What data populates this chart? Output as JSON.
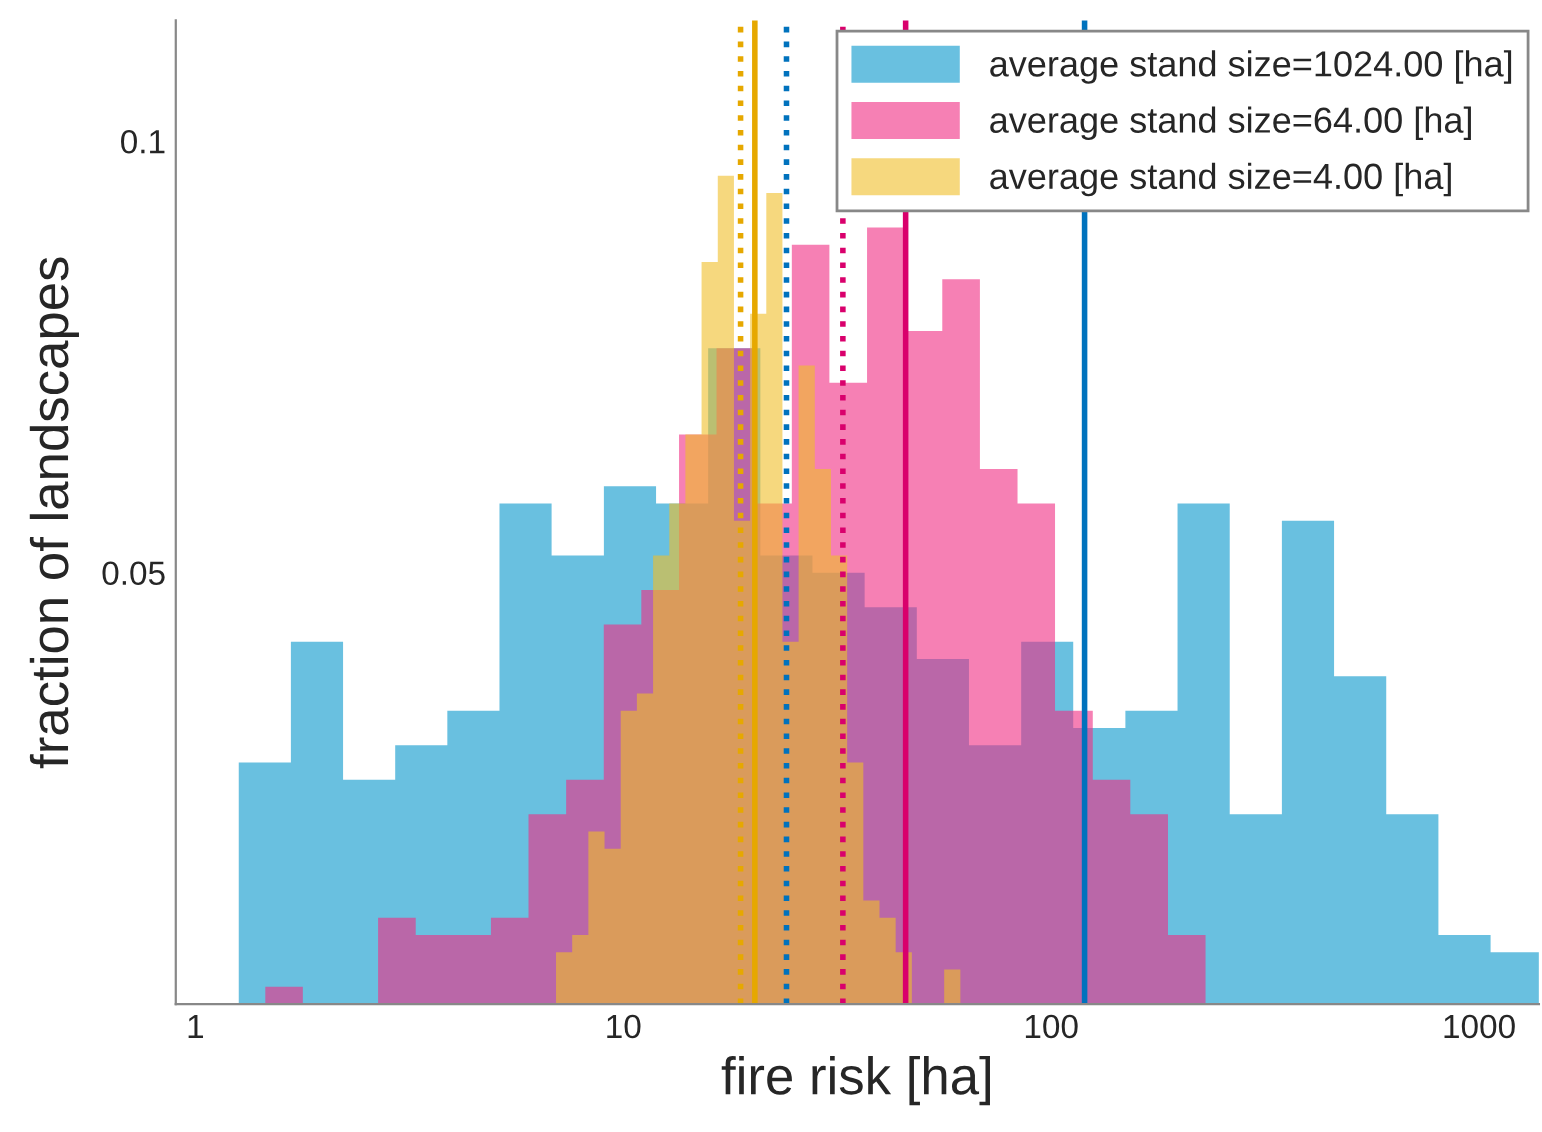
{
  "chart_data": {
    "type": "histogram",
    "xlabel": "fire risk [ha]",
    "ylabel": "fraction of landscapes",
    "log": "x",
    "xlim": [
      0.9,
      1380
    ],
    "xticks": [
      1,
      10,
      100,
      1000
    ],
    "ylim": [
      0,
      0.114
    ],
    "yticks": [
      0.05,
      0.1
    ],
    "grid": false,
    "legend": "top right",
    "bins": [
      1.263,
      1.672,
      2.214,
      2.931,
      3.88,
      5.137,
      6.8,
      9.01,
      11.93,
      15.79,
      20.91,
      27.68,
      36.65,
      48.53,
      64.25,
      85.1,
      112.6,
      149.1,
      197.4,
      261.4,
      346.1,
      458.3,
      606.8,
      803.5,
      1064,
      1380
    ],
    "series": [
      {
        "name": "average stand size=1024.00 [ha]",
        "color": "#69c0e0",
        "values": [
          0.028,
          0.042,
          0.026,
          0.03,
          0.034,
          0.058,
          0.052,
          0.06,
          0.058,
          0.076,
          0.052,
          0.05,
          0.046,
          0.04,
          0.03,
          0.042,
          0.032,
          0.034,
          0.058,
          0.022,
          0.056,
          0.038,
          0.022,
          0.008,
          0.006
        ]
      },
      {
        "name": "average stand size=64.00 [ha]",
        "type": "histogram",
        "color": "#f680b4",
        "bins": [
          1.457,
          1.783,
          2.183,
          2.673,
          3.273,
          4.007,
          4.906,
          6.006,
          7.354,
          9.004,
          11.02,
          13.5,
          16.52,
          20.23,
          24.77,
          30.32,
          37.13,
          45.46,
          55.66,
          68.15,
          83.44,
          102.1,
          125.1,
          153.1,
          187.5,
          229.5
        ],
        "values": [
          0.002,
          0,
          0,
          0.01,
          0.008,
          0.008,
          0.01,
          0.022,
          0.026,
          0.044,
          0.048,
          0.066,
          0.076,
          0.058,
          0.088,
          0.072,
          0.09,
          0.078,
          0.084,
          0.062,
          0.058,
          0.034,
          0.026,
          0.022,
          0.008
        ]
      },
      {
        "name": "average stand size=4.00 [ha]",
        "type": "histogram",
        "color": "#f6d87e",
        "bins": [
          6.964,
          7.597,
          8.288,
          9.041,
          9.863,
          10.76,
          11.74,
          12.81,
          13.97,
          15.24,
          16.63,
          18.14,
          19.79,
          21.59,
          23.55,
          25.69,
          28.03,
          30.58,
          33.36,
          36.39,
          39.7,
          43.31,
          47.25,
          51.54,
          56.23,
          61.34
        ],
        "values": [
          0.006,
          0.008,
          0.02,
          0.018,
          0.034,
          0.036,
          0.052,
          0.058,
          0.066,
          0.086,
          0.096,
          0.056,
          0.08,
          0.094,
          0.042,
          0.074,
          0.062,
          0.052,
          0.028,
          0.012,
          0.01,
          0.006,
          0,
          0,
          0.004
        ]
      }
    ],
    "ref_lines": [
      {
        "axis": "x",
        "value": 119.7,
        "color": "#0072bd",
        "line_style": "solid"
      },
      {
        "axis": "x",
        "value": 24.07,
        "color": "#0072bd",
        "line_style": "dotted"
      },
      {
        "axis": "x",
        "value": 45.7,
        "color": "#d9006c",
        "line_style": "solid"
      },
      {
        "axis": "x",
        "value": 32.6,
        "color": "#d9006c",
        "line_style": "dotted"
      },
      {
        "axis": "x",
        "value": 20.3,
        "color": "#e6a800",
        "line_style": "solid"
      },
      {
        "axis": "x",
        "value": 18.8,
        "color": "#e6a800",
        "line_style": "dotted"
      }
    ]
  }
}
